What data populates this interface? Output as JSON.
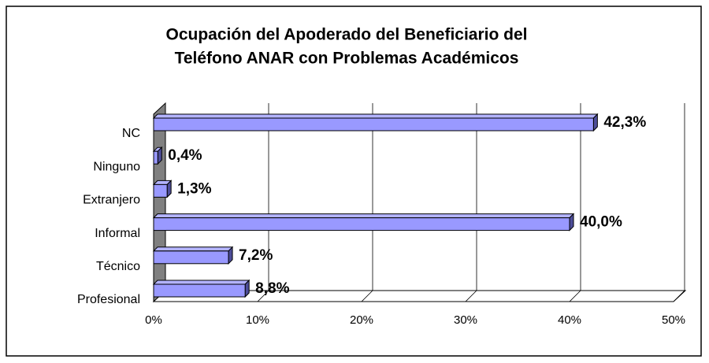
{
  "chart_data": {
    "type": "bar3d_horizontal",
    "title": [
      "Ocupación del Apoderado del Beneficiario del",
      "Teléfono ANAR con Problemas Académicos"
    ],
    "categories": [
      "NC",
      "Ninguno",
      "Extranjero",
      "Informal",
      "Técnico",
      "Profesional"
    ],
    "values": [
      42.3,
      0.4,
      1.3,
      40.0,
      7.2,
      8.8
    ],
    "value_labels": [
      "42,3%",
      "0,4%",
      "1,3%",
      "40,0%",
      "7,2%",
      "8,8%"
    ],
    "color": "#9999ff",
    "xlim": [
      0,
      50
    ],
    "xticks": [
      {
        "value": 0,
        "label": "0%"
      },
      {
        "value": 10,
        "label": "10%"
      },
      {
        "value": 20,
        "label": "20%"
      },
      {
        "value": 30,
        "label": "30%"
      },
      {
        "value": 40,
        "label": "40%"
      },
      {
        "value": 50,
        "label": "50%"
      }
    ],
    "grid": true
  }
}
